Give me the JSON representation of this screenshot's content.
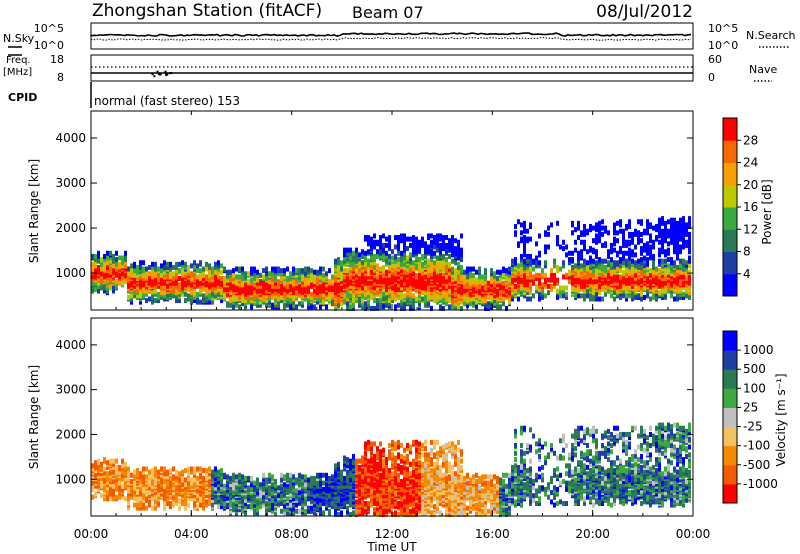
{
  "header": {
    "station": "Zhongshan Station (fitACF)",
    "beam": "Beam 07",
    "date": "08/Jul/2012"
  },
  "top_panels": {
    "nsky_label": "N.Sky",
    "nsearch_label": "N.Search",
    "nsky_ticks": [
      "10^5",
      "10^0"
    ],
    "nsearch_ticks": [
      "10^5",
      "10^0"
    ],
    "freq_label": "Freq.",
    "freq_unit": "[MHz]",
    "freq_ticks": [
      "18",
      "8"
    ],
    "nave_label": "Nave",
    "nave_ticks": [
      "60",
      "0"
    ],
    "cpid_label": "CPID",
    "cpid_text": "normal (fast stereo) 153"
  },
  "colors": {
    "power": [
      "#0000ff",
      "#1f3fa8",
      "#2a7a55",
      "#3bab3f",
      "#bcc800",
      "#f5a000",
      "#f56a00",
      "#ff0000"
    ],
    "velocity": [
      "#ff0000",
      "#f55a00",
      "#f58a00",
      "#f5c060",
      "#c0c0c0",
      "#3bab3f",
      "#2a7a55",
      "#1f3fa8",
      "#0000ff"
    ]
  },
  "chart_data": [
    {
      "type": "heatmap",
      "panel": "power",
      "ylabel": "Slant Range [km]",
      "y_ticks": [
        "4000",
        "3000",
        "2000",
        "1000"
      ],
      "ylim": [
        180,
        4600
      ],
      "colorbar_label": "Power [dB]",
      "colorbar_ticks": [
        "28",
        "24",
        "20",
        "16",
        "12",
        "8",
        "4"
      ],
      "colorbar_range": [
        0,
        32
      ]
    },
    {
      "type": "heatmap",
      "panel": "velocity",
      "ylabel": "Slant Range [km]",
      "y_ticks": [
        "4000",
        "3000",
        "2000",
        "1000"
      ],
      "ylim": [
        180,
        4600
      ],
      "colorbar_label": "Velocity [m s⁻¹]",
      "colorbar_ticks": [
        "1000",
        "500",
        "100",
        "25",
        "-25",
        "-100",
        "-500",
        "-1000"
      ],
      "colorbar_range": [
        -1000,
        1000
      ]
    }
  ],
  "x_axis": {
    "xlabel": "Time UT",
    "ticks": [
      "00:00",
      "04:00",
      "08:00",
      "12:00",
      "16:00",
      "20:00",
      "00:00"
    ]
  }
}
